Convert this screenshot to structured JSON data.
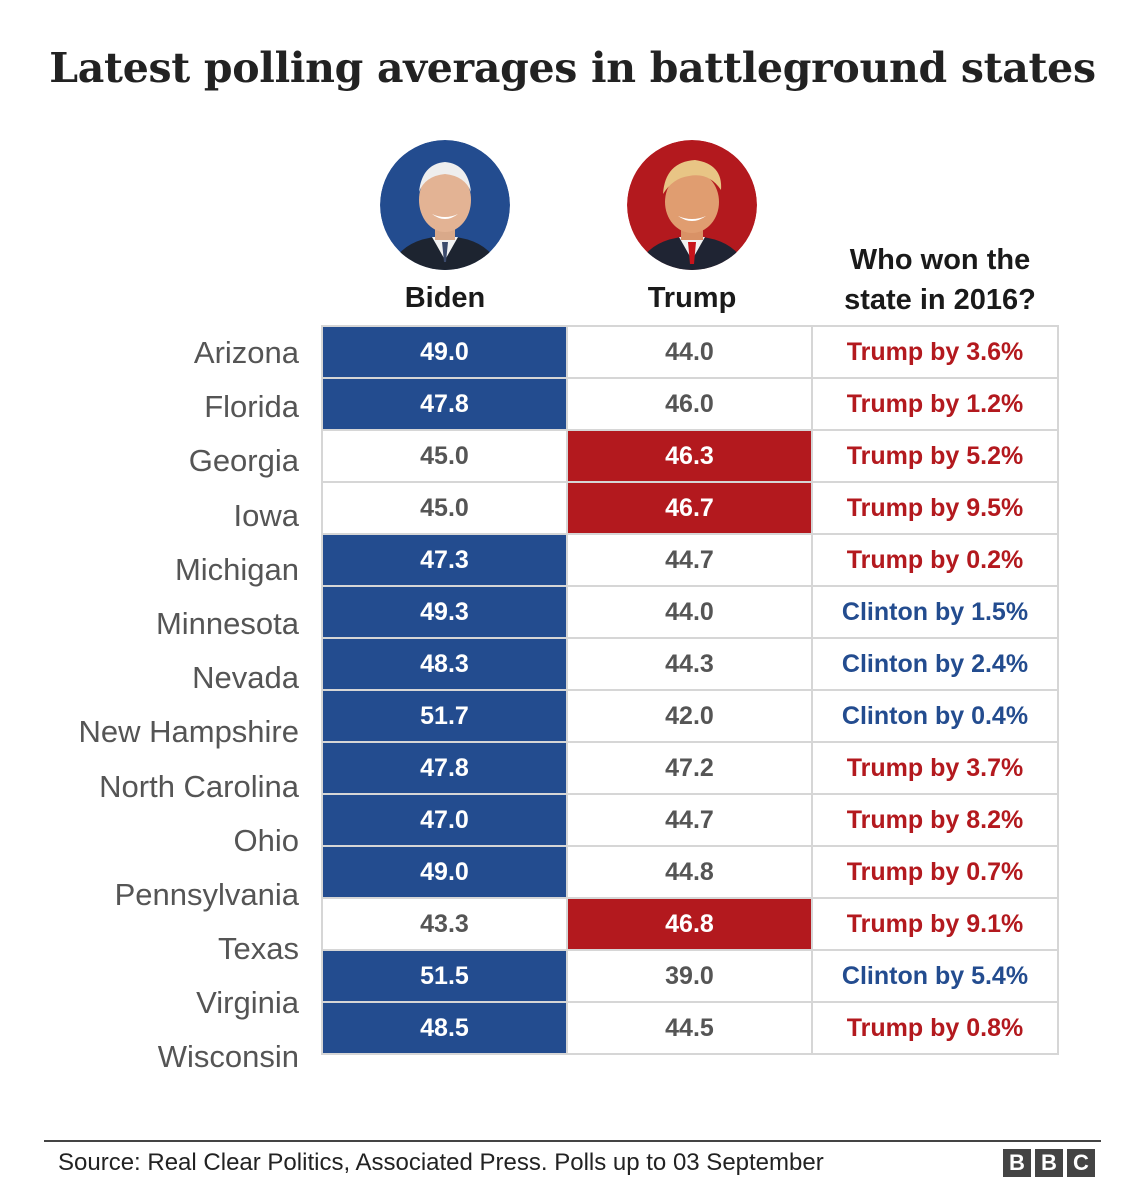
{
  "title": "Latest polling averages in battleground states",
  "columns": {
    "biden": "Biden",
    "trump": "Trump",
    "won_2016": "Who won the state in 2016?"
  },
  "candidates": {
    "biden": {
      "name": "Biden",
      "color": "#234c8f"
    },
    "trump": {
      "name": "Trump",
      "color": "#b3191e"
    }
  },
  "chart_data": {
    "type": "table",
    "title": "Latest polling averages in battleground states",
    "columns": [
      "Biden",
      "Trump",
      "Who won the state in 2016?"
    ],
    "rows": [
      {
        "state": "Arizona",
        "biden": "49.0",
        "trump": "44.0",
        "won_2016": "Trump by 3.6%",
        "party_2016": "R"
      },
      {
        "state": "Florida",
        "biden": "47.8",
        "trump": "46.0",
        "won_2016": "Trump by 1.2%",
        "party_2016": "R"
      },
      {
        "state": "Georgia",
        "biden": "45.0",
        "trump": "46.3",
        "won_2016": "Trump by 5.2%",
        "party_2016": "R"
      },
      {
        "state": "Iowa",
        "biden": "45.0",
        "trump": "46.7",
        "won_2016": "Trump by 9.5%",
        "party_2016": "R"
      },
      {
        "state": "Michigan",
        "biden": "47.3",
        "trump": "44.7",
        "won_2016": "Trump by 0.2%",
        "party_2016": "R"
      },
      {
        "state": "Minnesota",
        "biden": "49.3",
        "trump": "44.0",
        "won_2016": "Clinton by 1.5%",
        "party_2016": "D"
      },
      {
        "state": "Nevada",
        "biden": "48.3",
        "trump": "44.3",
        "won_2016": "Clinton by 2.4%",
        "party_2016": "D"
      },
      {
        "state": "New Hampshire",
        "biden": "51.7",
        "trump": "42.0",
        "won_2016": "Clinton by 0.4%",
        "party_2016": "D"
      },
      {
        "state": "North Carolina",
        "biden": "47.8",
        "trump": "47.2",
        "won_2016": "Trump by 3.7%",
        "party_2016": "R"
      },
      {
        "state": "Ohio",
        "biden": "47.0",
        "trump": "44.7",
        "won_2016": "Trump by 8.2%",
        "party_2016": "R"
      },
      {
        "state": "Pennsylvania",
        "biden": "49.0",
        "trump": "44.8",
        "won_2016": "Trump by 0.7%",
        "party_2016": "R"
      },
      {
        "state": "Texas",
        "biden": "43.3",
        "trump": "46.8",
        "won_2016": "Trump by 9.1%",
        "party_2016": "R"
      },
      {
        "state": "Virginia",
        "biden": "51.5",
        "trump": "39.0",
        "won_2016": "Clinton by 5.4%",
        "party_2016": "D"
      },
      {
        "state": "Wisconsin",
        "biden": "48.5",
        "trump": "44.5",
        "won_2016": "Trump by 0.8%",
        "party_2016": "R"
      }
    ]
  },
  "footer": {
    "source": "Source: Real Clear Politics, Associated Press. Polls up to 03 September",
    "logo_letters": [
      "B",
      "B",
      "C"
    ]
  }
}
